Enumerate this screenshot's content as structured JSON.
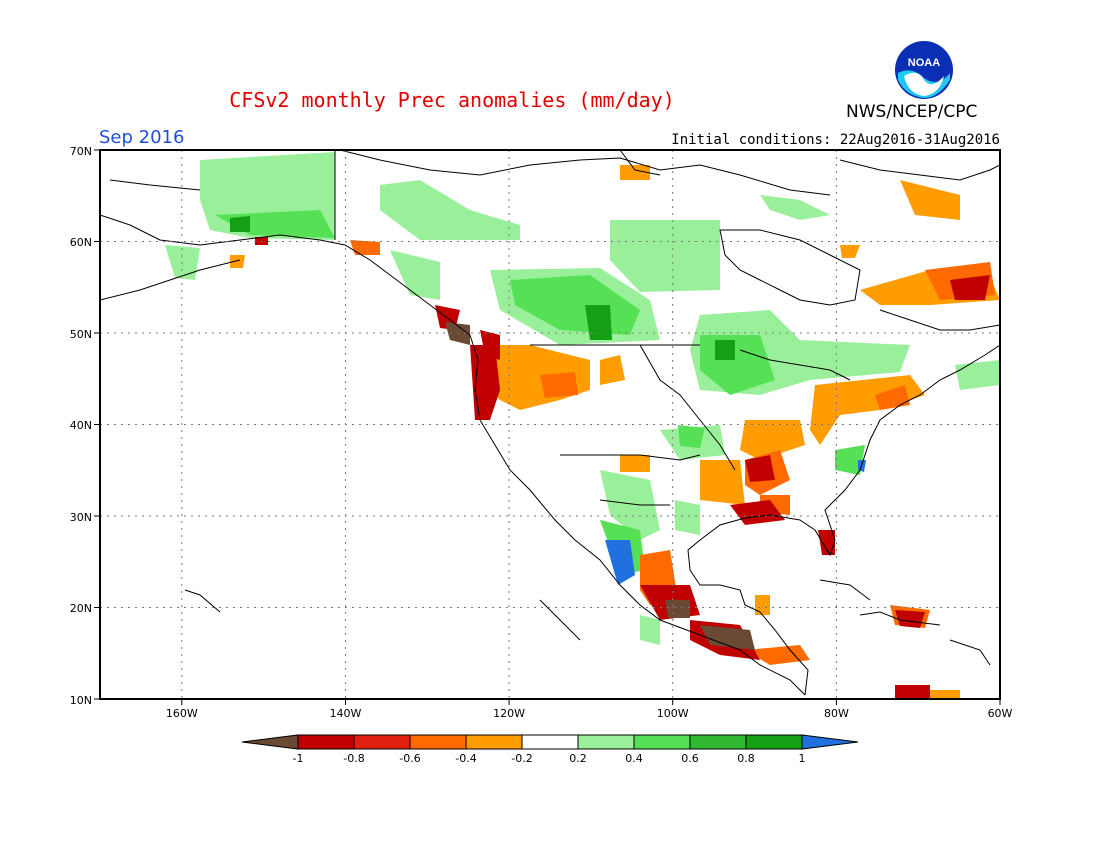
{
  "title": "CFSv2 monthly Prec anomalies (mm/day)",
  "period": "Sep 2016",
  "initial_conditions": "Initial conditions: 22Aug2016-31Aug2016",
  "agency": "NWS/NCEP/CPC",
  "logo_text": "NOAA",
  "map": {
    "region": "North America",
    "lon_range": [
      -170,
      -60
    ],
    "lat_range": [
      10,
      70
    ],
    "lat_ticks": [
      "10N",
      "20N",
      "30N",
      "40N",
      "50N",
      "60N",
      "70N"
    ],
    "lon_ticks": [
      "160W",
      "140W",
      "120W",
      "100W",
      "80W",
      "60W"
    ],
    "grid": "dotted",
    "anomaly_regions": [
      {
        "area": "Pacific Northwest coast",
        "level": "-1"
      },
      {
        "area": "Northern California coast",
        "level": "-0.8"
      },
      {
        "area": "Idaho / Oregon interior",
        "level": "-0.4"
      },
      {
        "area": "Southern Mexico / Central America",
        "level": "-1"
      },
      {
        "area": "Gulf coast Louisiana",
        "level": "-0.8"
      },
      {
        "area": "Tennessee valley",
        "level": "-0.6"
      },
      {
        "area": "Mid-Atlantic / Northeast",
        "level": "-0.4"
      },
      {
        "area": "Labrador / Quebec",
        "level": "-0.6"
      },
      {
        "area": "Northern Great Plains / Great Lakes",
        "level": "0.6"
      },
      {
        "area": "Canadian Prairies",
        "level": "0.6"
      },
      {
        "area": "Alaska",
        "level": "0.4"
      },
      {
        "area": "Baja / Gulf of California",
        "level": "1"
      },
      {
        "area": "North Carolina coast",
        "level": "0.6"
      }
    ]
  },
  "colorbar": {
    "labels": [
      "-1",
      "-0.8",
      "-0.6",
      "-0.4",
      "-0.2",
      "0.2",
      "0.4",
      "0.6",
      "0.8",
      "1"
    ],
    "colors": [
      "#6b4a35",
      "#c00000",
      "#e02010",
      "#ff6a00",
      "#ff9d00",
      "#ffffff",
      "#9af09a",
      "#55e055",
      "#30b830",
      "#14a014",
      "#2070e0"
    ]
  }
}
